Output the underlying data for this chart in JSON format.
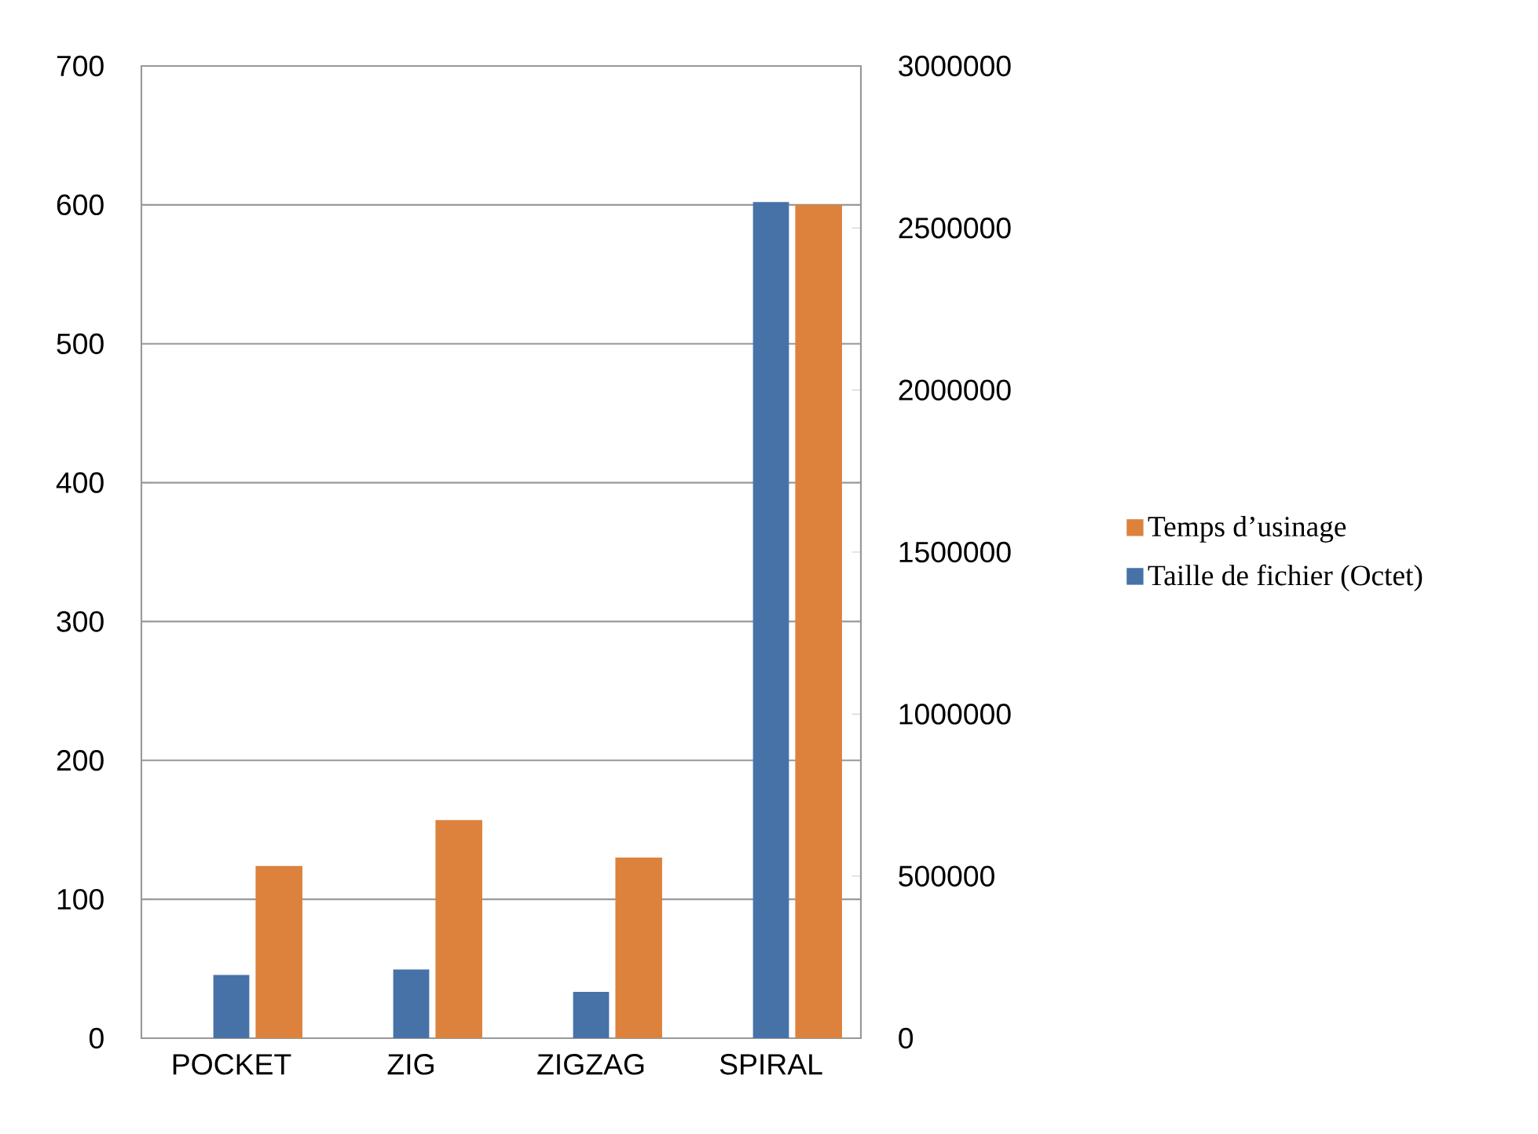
{
  "chart_data": {
    "type": "bar",
    "categories": [
      "POCKET",
      "ZIG",
      "ZIGZAG",
      "SPIRAL"
    ],
    "series": [
      {
        "name": "Taille de fichier (Octet)",
        "color": "#4672a8",
        "axis": "y2",
        "values": [
          195000,
          212000,
          143000,
          2580000
        ]
      },
      {
        "name": "Temps d’usinage",
        "color": "#dc823c",
        "values": [
          124,
          157,
          130,
          600
        ]
      }
    ],
    "ylim": [
      0,
      700
    ],
    "yticks": [
      0,
      100,
      200,
      300,
      400,
      500,
      600,
      700
    ],
    "y2lim": [
      0,
      3000000
    ],
    "y2ticks": [
      0,
      500000,
      1000000,
      1500000,
      2000000,
      2500000,
      3000000
    ],
    "grid": "y",
    "legend": "right"
  }
}
